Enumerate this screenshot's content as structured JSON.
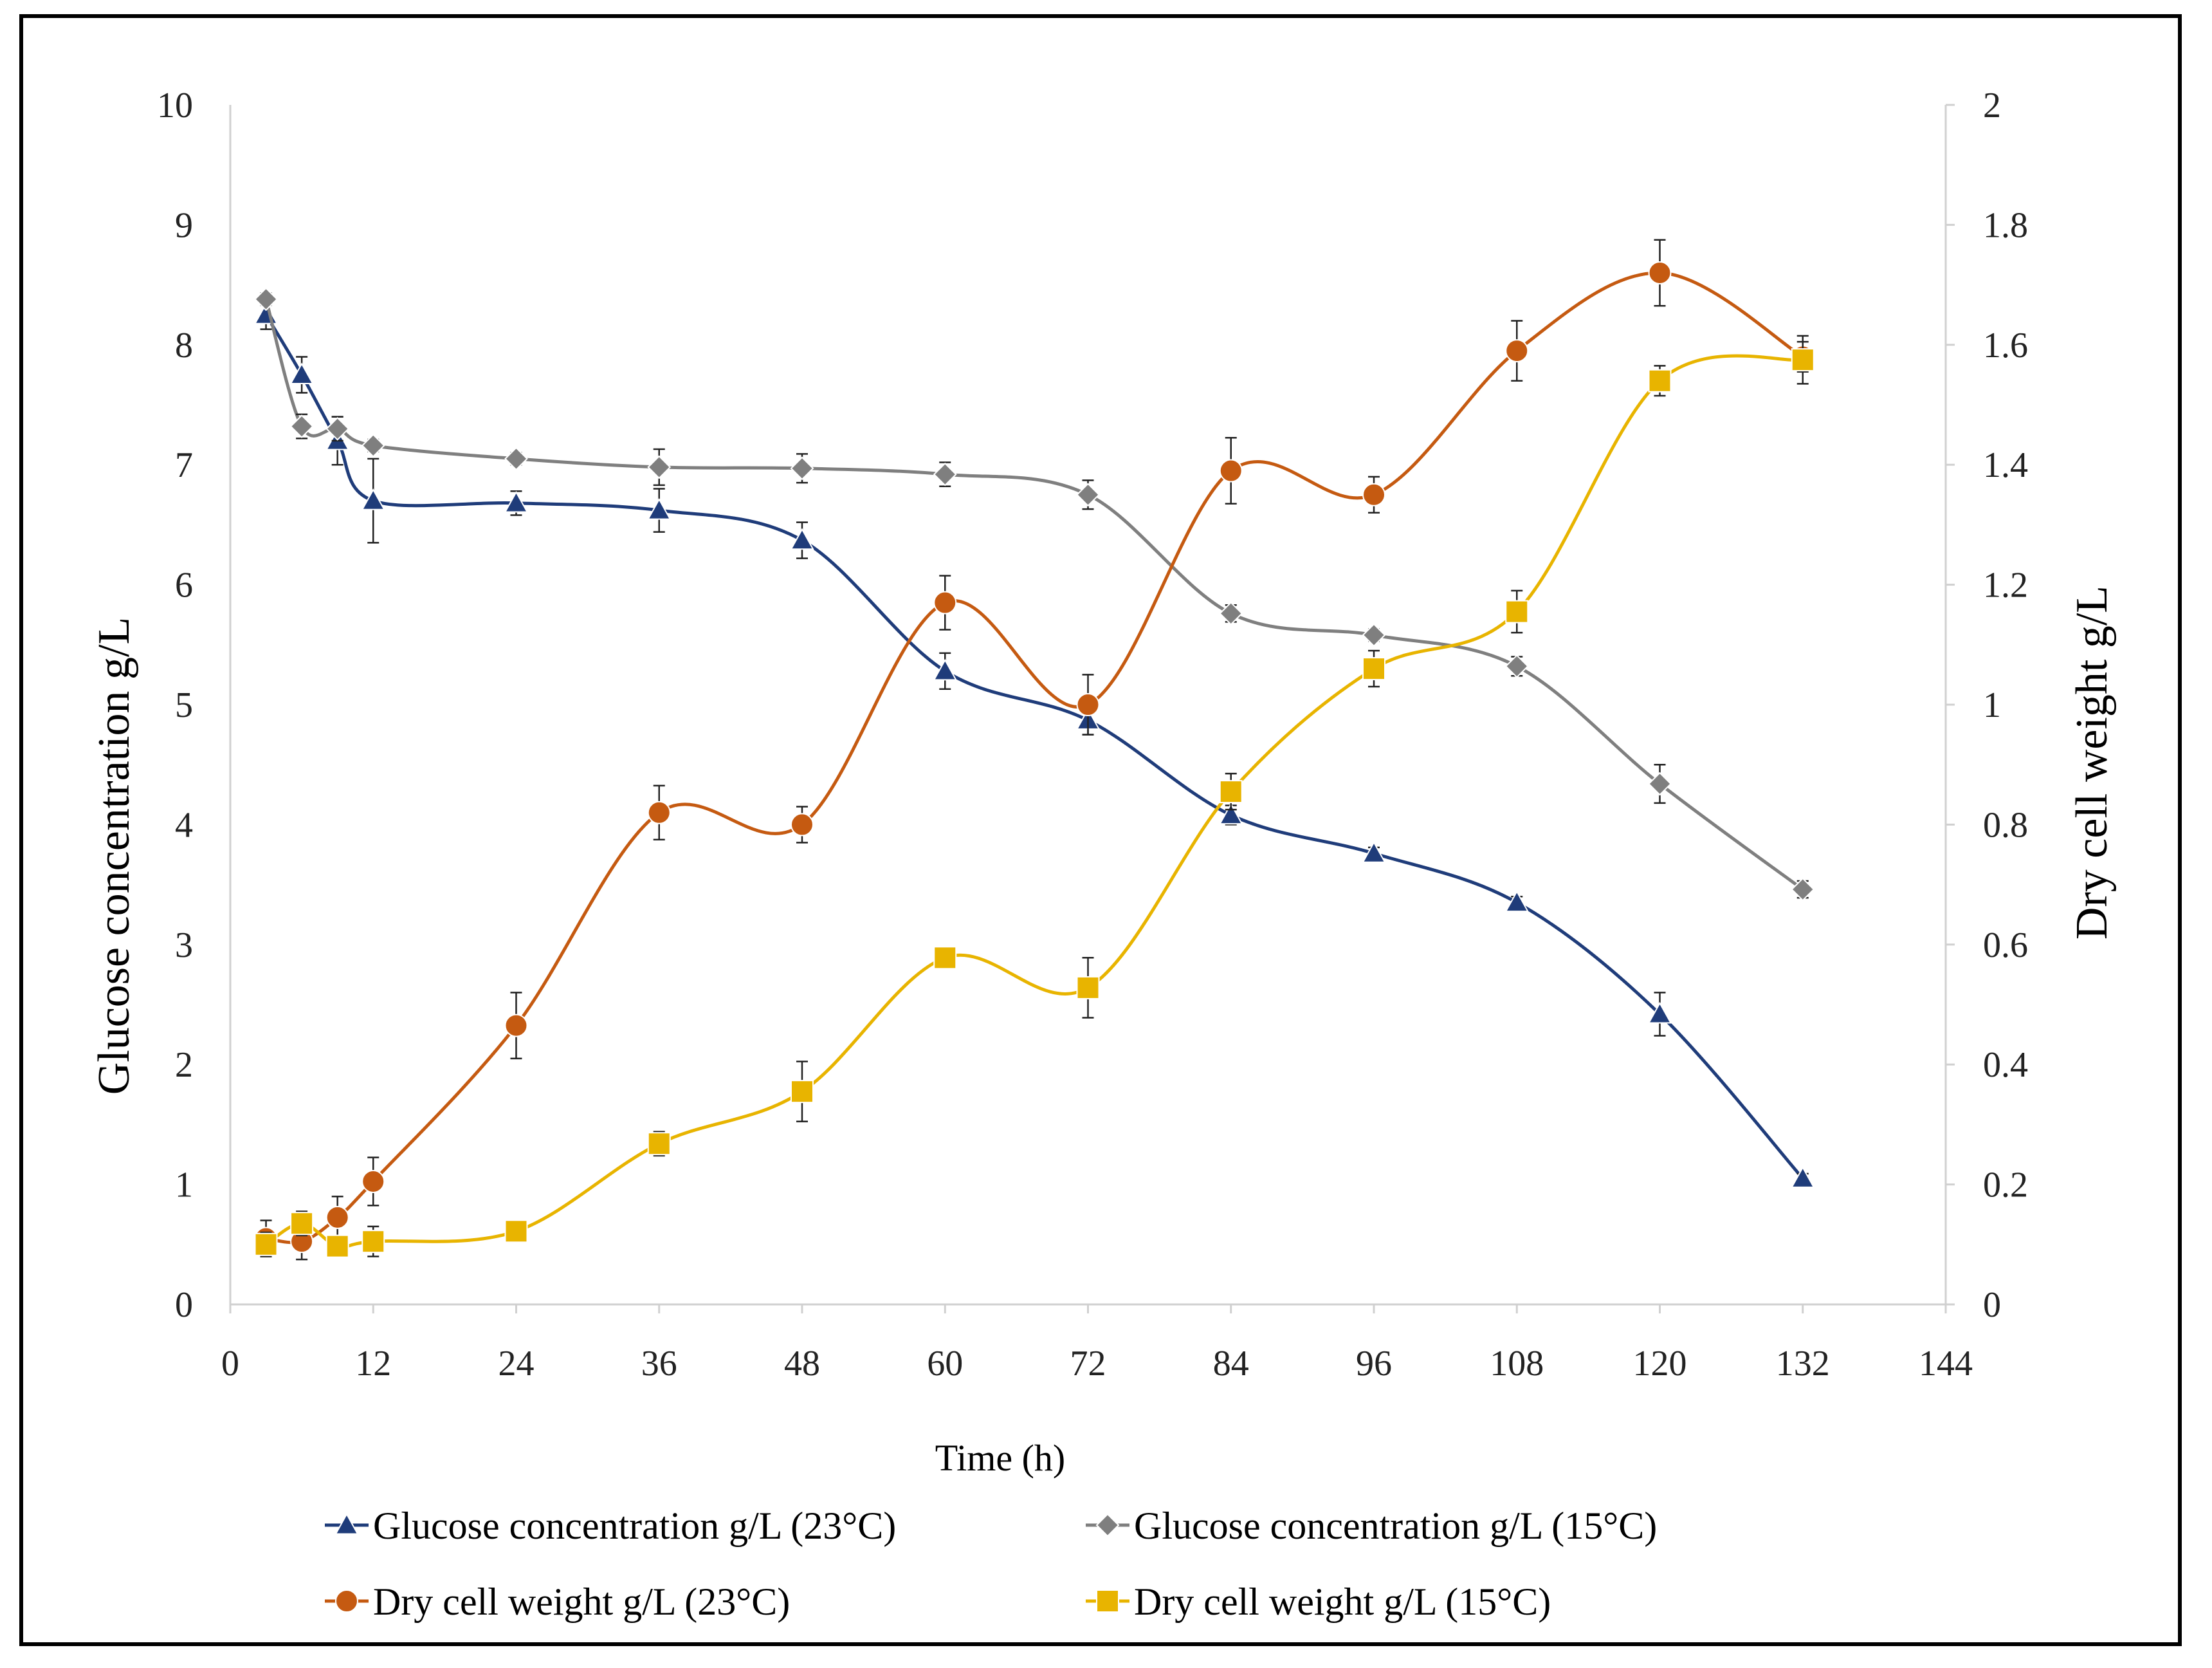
{
  "chart_data": {
    "type": "line",
    "title": "",
    "xlabel": "Time (h)",
    "ylabel": "Glucose concentration g/L",
    "y2label": "Dry cell weight g/L",
    "xlim": [
      0,
      144
    ],
    "ylim": [
      0,
      10
    ],
    "y2lim": [
      0,
      2
    ],
    "xticks": [
      "0",
      "12",
      "24",
      "36",
      "48",
      "60",
      "72",
      "84",
      "96",
      "108",
      "120",
      "132",
      "144"
    ],
    "yticks": [
      "0",
      "1",
      "2",
      "3",
      "4",
      "5",
      "6",
      "7",
      "8",
      "9",
      "10"
    ],
    "y2ticks": [
      "0",
      "0.2",
      "0.4",
      "0.6",
      "0.8",
      "1",
      "1.2",
      "1.4",
      "1.6",
      "1.8",
      "2"
    ],
    "grid": false,
    "legend_position": "bottom",
    "series": [
      {
        "name": "Glucose concentration g/L (23°C)",
        "axis": "left",
        "color": "#1f3c7a",
        "marker": "triangle",
        "x": [
          3,
          6,
          9,
          12,
          24,
          36,
          48,
          60,
          72,
          84,
          96,
          108,
          120,
          132
        ],
        "values": [
          8.25,
          7.75,
          7.2,
          6.7,
          6.68,
          6.62,
          6.37,
          5.28,
          4.87,
          4.08,
          3.76,
          3.35,
          2.42,
          1.05
        ],
        "errors": [
          0.12,
          0.15,
          0.2,
          0.35,
          0.1,
          0.18,
          0.15,
          0.15,
          0.12,
          0.08,
          0.05,
          0.05,
          0.18,
          0.04
        ]
      },
      {
        "name": "Glucose concentration g/L (15°C)",
        "axis": "left",
        "color": "#7f7f7f",
        "marker": "diamond",
        "x": [
          3,
          6,
          9,
          12,
          24,
          36,
          48,
          60,
          72,
          84,
          96,
          108,
          120,
          132
        ],
        "values": [
          8.38,
          7.32,
          7.3,
          7.16,
          7.05,
          6.98,
          6.97,
          6.92,
          6.75,
          5.76,
          5.58,
          5.32,
          4.34,
          3.46
        ],
        "errors": [
          0.05,
          0.1,
          0.1,
          0.05,
          0.05,
          0.15,
          0.12,
          0.1,
          0.12,
          0.07,
          0.05,
          0.08,
          0.16,
          0.07
        ]
      },
      {
        "name": "Dry cell weight g/L (23°C)",
        "axis": "right",
        "color": "#c55a11",
        "marker": "circle",
        "x": [
          3,
          6,
          9,
          12,
          24,
          36,
          48,
          60,
          72,
          84,
          96,
          108,
          120,
          132
        ],
        "values": [
          0.11,
          0.105,
          0.145,
          0.205,
          0.465,
          0.82,
          0.8,
          1.17,
          1.0,
          1.39,
          1.35,
          1.59,
          1.72,
          1.58
        ],
        "errors": [
          0.03,
          0.03,
          0.035,
          0.04,
          0.055,
          0.045,
          0.03,
          0.045,
          0.05,
          0.055,
          0.03,
          0.05,
          0.055,
          0.025
        ]
      },
      {
        "name": "Dry cell weight g/L (15°C)",
        "axis": "right",
        "color": "#e8b400",
        "marker": "square",
        "x": [
          3,
          6,
          9,
          12,
          24,
          36,
          48,
          60,
          72,
          84,
          96,
          108,
          120,
          132
        ],
        "values": [
          0.1,
          0.135,
          0.097,
          0.105,
          0.122,
          0.268,
          0.355,
          0.578,
          0.528,
          0.855,
          1.06,
          1.155,
          1.54,
          1.575
        ],
        "errors": [
          0.02,
          0.02,
          0.01,
          0.025,
          0.01,
          0.02,
          0.05,
          0.015,
          0.05,
          0.03,
          0.03,
          0.035,
          0.025,
          0.04
        ]
      }
    ]
  }
}
